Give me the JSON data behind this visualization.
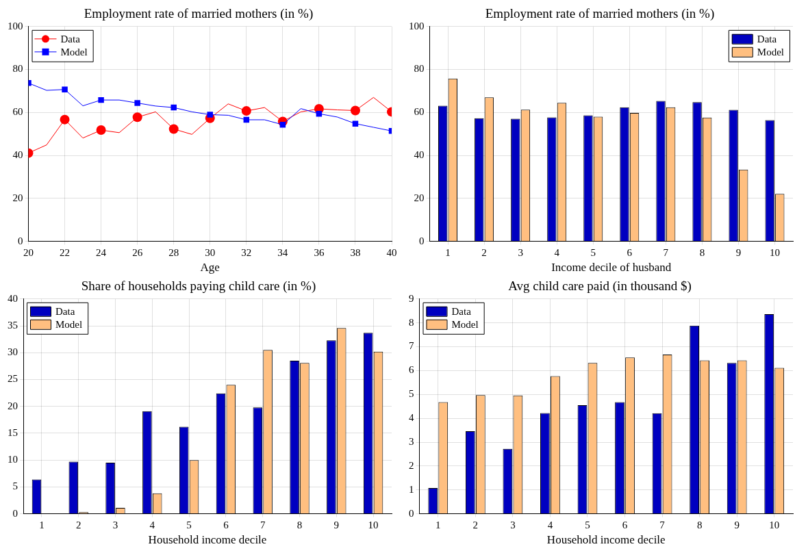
{
  "chart_data": [
    {
      "type": "line",
      "title": "Employment rate of married mothers (in %)",
      "xlabel": "Age",
      "x": [
        20,
        21,
        22,
        23,
        24,
        25,
        26,
        27,
        28,
        29,
        30,
        31,
        32,
        33,
        34,
        35,
        36,
        37,
        38,
        39,
        40
      ],
      "series": [
        {
          "name": "Data",
          "color": "#ff0000",
          "marker": "circle",
          "values": [
            41.1,
            44.9,
            56.7,
            48.1,
            51.8,
            50.6,
            57.8,
            60.3,
            52.3,
            49.8,
            57.3,
            64,
            60.7,
            62.3,
            55.8,
            60.3,
            61.7,
            61.2,
            60.9,
            67,
            60.3
          ]
        },
        {
          "name": "Model",
          "color": "#0000ff",
          "marker": "square",
          "values": [
            73.7,
            70.3,
            70.7,
            63.1,
            65.8,
            65.8,
            64.4,
            63,
            62.3,
            60.3,
            59,
            58.7,
            56.6,
            56.6,
            54.3,
            61.8,
            59.4,
            57.9,
            54.8,
            53.1,
            51.4
          ]
        }
      ],
      "xlim": [
        20,
        40
      ],
      "xticks": [
        20,
        22,
        24,
        26,
        28,
        30,
        32,
        34,
        36,
        38,
        40
      ],
      "ylim": [
        0,
        100
      ],
      "yticks": [
        0,
        20,
        40,
        60,
        80,
        100
      ],
      "grid": true,
      "legend": "top left"
    },
    {
      "type": "bar",
      "title": "Employment rate of married mothers (in %)",
      "xlabel": "Income decile of husband",
      "categories": [
        "1",
        "2",
        "3",
        "4",
        "5",
        "6",
        "7",
        "8",
        "9",
        "10"
      ],
      "series": [
        {
          "name": "Data",
          "color": "#0000c0",
          "values": [
            63.1,
            57.3,
            57.1,
            57.7,
            58.7,
            62.4,
            65.4,
            64.8,
            61.2,
            56.4
          ]
        },
        {
          "name": "Model",
          "color": "#ffbf80",
          "values": [
            75.8,
            67,
            61.3,
            64.5,
            58,
            59.8,
            62.4,
            57.6,
            33.4,
            22.1
          ]
        }
      ],
      "ylim": [
        0,
        100
      ],
      "yticks": [
        0,
        20,
        40,
        60,
        80,
        100
      ],
      "grid": true,
      "legend": "top right"
    },
    {
      "type": "bar",
      "title": "Share of households paying child care (in %)",
      "xlabel": "Household income decile",
      "categories": [
        "1",
        "2",
        "3",
        "4",
        "5",
        "6",
        "7",
        "8",
        "9",
        "10"
      ],
      "series": [
        {
          "name": "Data",
          "color": "#0000c0",
          "values": [
            6.4,
            9.7,
            9.5,
            19.1,
            16.2,
            22.4,
            19.8,
            28.5,
            32.3,
            33.7
          ]
        },
        {
          "name": "Model",
          "color": "#ffbf80",
          "values": [
            null,
            0.3,
            1.1,
            3.8,
            10,
            24,
            30.5,
            28.1,
            34.6,
            30.2
          ]
        }
      ],
      "ylim": [
        0,
        40
      ],
      "yticks": [
        0,
        5,
        10,
        15,
        20,
        25,
        30,
        35,
        40
      ],
      "grid": true,
      "legend": "top left"
    },
    {
      "type": "bar",
      "title": "Avg child care paid (in thousand $)",
      "xlabel": "Household income decile",
      "categories": [
        "1",
        "2",
        "3",
        "4",
        "5",
        "6",
        "7",
        "8",
        "9",
        "10"
      ],
      "series": [
        {
          "name": "Data",
          "color": "#0000c0",
          "values": [
            1.08,
            3.46,
            2.72,
            4.22,
            4.55,
            4.68,
            4.21,
            7.88,
            6.32,
            8.36
          ]
        },
        {
          "name": "Model",
          "color": "#ffbf80",
          "values": [
            4.68,
            4.97,
            4.96,
            5.77,
            6.32,
            6.55,
            6.67,
            6.43,
            6.43,
            6.11
          ]
        }
      ],
      "ylim": [
        0,
        9
      ],
      "yticks": [
        0,
        1,
        2,
        3,
        4,
        5,
        6,
        7,
        8,
        9
      ],
      "grid": true,
      "legend": "top left"
    }
  ]
}
